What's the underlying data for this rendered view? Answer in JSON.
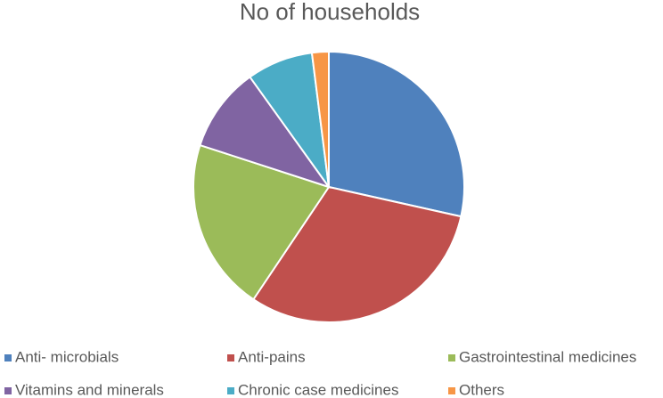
{
  "chart_data": {
    "type": "pie",
    "title": "No of households",
    "categories": [
      "Anti- microbials",
      "Anti-pains",
      "Gastrointestinal medicines",
      "Vitamins and minerals",
      "Chronic case medicines",
      "Others"
    ],
    "values": [
      28.5,
      30.9,
      20.6,
      10.1,
      7.9,
      2.0
    ],
    "colors": [
      "#4f81bd",
      "#c0504d",
      "#9bbb59",
      "#8064a2",
      "#4bacc6",
      "#f79646"
    ],
    "legend": "bottom"
  }
}
